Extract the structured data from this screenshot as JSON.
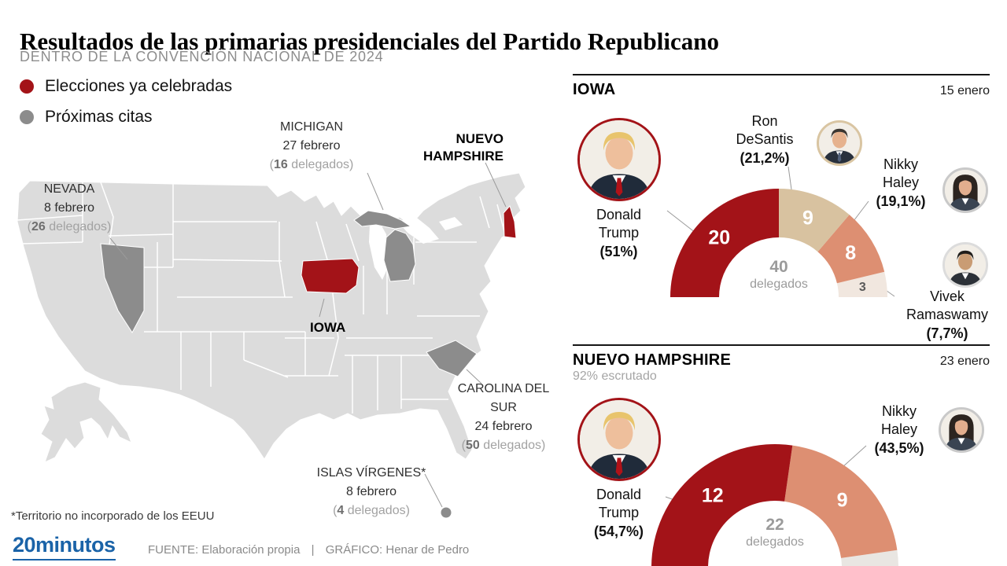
{
  "header": {
    "title": "Resultados de las primarias presidenciales del Partido Republicano",
    "subtitle": "DENTRO DE LA CONVENCIÓN NACIONAL DE 2024"
  },
  "legend": {
    "held": {
      "label": "Elecciones ya celebradas",
      "color": "#a31318"
    },
    "upcoming": {
      "label": "Próximas citas",
      "color": "#8c8c8c"
    }
  },
  "map": {
    "footnote": "*Territorio no incorporado de los EEUU",
    "states": [
      {
        "name": "NEVADA",
        "status": "upcoming",
        "date": "8 febrero",
        "delegates": "26",
        "delegates_prefix": "(",
        "delegates_suffix": " delegados)"
      },
      {
        "name": "MICHIGAN",
        "status": "upcoming",
        "date": "27 febrero",
        "delegates": "16",
        "delegates_prefix": "(",
        "delegates_suffix": " delegados)"
      },
      {
        "name": "NUEVO HAMPSHIRE",
        "status": "held"
      },
      {
        "name": "IOWA",
        "status": "held"
      },
      {
        "name": "CAROLINA DEL SUR",
        "status": "upcoming",
        "date": "24 febrero",
        "delegates": "50",
        "delegates_prefix": "(",
        "delegates_suffix": " delegados)"
      },
      {
        "name": "ISLAS VÍRGENES*",
        "status": "upcoming",
        "date": "8 febrero",
        "delegates": "4",
        "delegates_prefix": "(",
        "delegates_suffix": " delegados)"
      }
    ]
  },
  "chart_data": [
    {
      "type": "pie",
      "variant": "half-donut",
      "title": "IOWA",
      "date": "15 enero",
      "unit": "delegados",
      "center": {
        "value": "40",
        "label": "delegados"
      },
      "total_delegates": 40,
      "segments": [
        {
          "name": "Donald Trump",
          "percent": "(51%)",
          "delegates": 20,
          "color": "#a31318",
          "value_color": "#ffffff",
          "show_value": true
        },
        {
          "name": "Ron DeSantis",
          "percent": "(21,2%)",
          "delegates": 9,
          "color": "#d8c2a0",
          "value_color": "#ffffff",
          "show_value": true
        },
        {
          "name": "Nikky Haley",
          "percent": "(19,1%)",
          "delegates": 8,
          "color": "#dd8f72",
          "value_color": "#ffffff",
          "show_value": true
        },
        {
          "name": "Vivek Ramaswamy",
          "percent": "(7,7%)",
          "delegates": 3,
          "color": "#f1e7df",
          "value_color": "#5a5a5a",
          "show_value": true
        }
      ]
    },
    {
      "type": "pie",
      "variant": "half-donut",
      "title": "NUEVO HAMPSHIRE",
      "date": "23 enero",
      "note": "92% escrutado",
      "unit": "delegados",
      "center": {
        "value": "22",
        "label": "delegados"
      },
      "total_delegates": 22,
      "segments": [
        {
          "name": "Donald Trump",
          "percent": "(54,7%)",
          "delegates": 12,
          "color": "#a31318",
          "value_color": "#ffffff",
          "show_value": true
        },
        {
          "name": "Nikky Haley",
          "percent": "(43,5%)",
          "delegates": 9,
          "color": "#dd8f72",
          "value_color": "#ffffff",
          "show_value": true
        },
        {
          "delegates": 1,
          "color": "#e9e6e2",
          "show_value": false
        }
      ]
    }
  ],
  "footer": {
    "logo": "20minutos",
    "source_label": "FUENTE:",
    "source": "Elaboración propia",
    "separator": "|",
    "credit_label": "GRÁFICO:",
    "credit": "Henar de Pedro"
  }
}
